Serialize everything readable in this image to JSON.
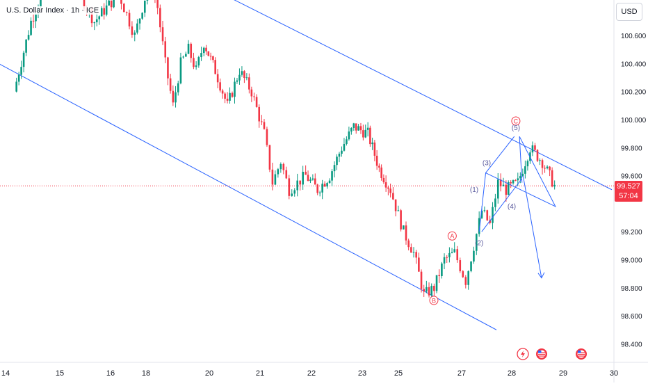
{
  "header": {
    "title": "U.S. Dollar Index · 1h · ICE"
  },
  "toolbar": {
    "currency_label": "USD"
  },
  "last_price": {
    "value": "99.527",
    "countdown": "57:04",
    "level": 99.527
  },
  "chart_data": {
    "type": "candlestick",
    "ylim": [
      98.3,
      101.1
    ],
    "y_ticks": [
      {
        "v": 100.6,
        "label": "100.600"
      },
      {
        "v": 100.4,
        "label": "100.400"
      },
      {
        "v": 100.2,
        "label": "100.200"
      },
      {
        "v": 100.0,
        "label": "100.000"
      },
      {
        "v": 99.8,
        "label": "99.800"
      },
      {
        "v": 99.6,
        "label": "99.600"
      },
      {
        "v": 99.2,
        "label": "99.200"
      },
      {
        "v": 99.0,
        "label": "99.000"
      },
      {
        "v": 98.8,
        "label": "98.800"
      },
      {
        "v": 98.6,
        "label": "98.600"
      },
      {
        "v": 98.4,
        "label": "98.400"
      }
    ],
    "x_ticks": [
      "14",
      "15",
      "16",
      "18",
      "20",
      "21",
      "22",
      "23",
      "25",
      "27",
      "28",
      "29",
      "30"
    ],
    "colors": {
      "up": "#089981",
      "down": "#f23645",
      "channel": "#2962ff",
      "wave": "#2962ff",
      "label_red": "#f23645",
      "label_purple": "#5b5b9e"
    },
    "path": [
      [
        "14",
        100.2
      ],
      [
        "14",
        100.7
      ],
      [
        "14",
        101.0
      ],
      [
        "15",
        101.0
      ],
      [
        "15",
        100.7
      ],
      [
        "16",
        100.9
      ],
      [
        "16",
        100.6
      ],
      [
        "18",
        101.0
      ],
      [
        "18",
        100.8
      ],
      [
        "18",
        100.4
      ],
      [
        "18",
        100.1
      ],
      [
        "18",
        100.4
      ],
      [
        "18",
        100.5
      ],
      [
        "18",
        100.35
      ],
      [
        "18",
        100.55
      ],
      [
        "20",
        100.35
      ],
      [
        "20",
        100.1
      ],
      [
        "20",
        100.35
      ],
      [
        "20",
        100.2
      ],
      [
        "21",
        99.9
      ],
      [
        "21",
        99.55
      ],
      [
        "21",
        99.7
      ],
      [
        "21",
        99.5
      ],
      [
        "21",
        99.55
      ],
      [
        "21",
        99.6
      ],
      [
        "22",
        99.5
      ],
      [
        "22",
        99.6
      ],
      [
        "22",
        99.8
      ],
      [
        "22",
        99.95
      ],
      [
        "23",
        99.9
      ],
      [
        "23",
        99.65
      ],
      [
        "23",
        99.5
      ],
      [
        "25",
        99.2
      ],
      [
        "25",
        99.05
      ],
      [
        "25",
        98.75
      ],
      [
        "25",
        98.8
      ],
      [
        "25",
        99.0
      ],
      [
        "25",
        99.05
      ],
      [
        "27",
        98.85
      ],
      [
        "27",
        99.1
      ],
      [
        "27",
        99.35
      ],
      [
        "27",
        99.25
      ],
      [
        "27",
        99.55
      ],
      [
        "27",
        99.5
      ],
      [
        "28",
        99.55
      ],
      [
        "28",
        99.8
      ],
      [
        "28",
        99.7
      ],
      [
        "28",
        99.527
      ]
    ],
    "channel": {
      "upper": [
        [
          "14",
          101.7
        ],
        [
          "29",
          99.5
        ]
      ],
      "lower": [
        [
          "14",
          100.4
        ],
        [
          "27",
          98.5
        ]
      ]
    },
    "wave_labels": [
      {
        "label": "A",
        "x": "25",
        "y": 99.17,
        "circled": true
      },
      {
        "label": "B",
        "x": "25",
        "y": 98.71,
        "circled": true
      },
      {
        "label": "C",
        "x": "28",
        "y": 99.99,
        "circled": true
      },
      {
        "label": "(1)",
        "x": "27",
        "y": 99.5
      },
      {
        "label": "(2)",
        "x": "27",
        "y": 99.12
      },
      {
        "label": "(3)",
        "x": "27",
        "y": 99.69
      },
      {
        "label": "(4)",
        "x": "28",
        "y": 99.38
      },
      {
        "label": "(5)",
        "x": "28",
        "y": 99.94
      }
    ],
    "wave_path": [
      [
        "27",
        99.2
      ],
      [
        "27",
        99.62
      ],
      [
        "28",
        99.38
      ],
      [
        "28",
        99.88
      ],
      [
        "28",
        99.55
      ]
    ],
    "projection": [
      [
        "28",
        99.6
      ],
      [
        "28",
        98.87
      ]
    ],
    "event_icons": [
      {
        "x": "28",
        "icon": "lightning-icon"
      },
      {
        "x": "28",
        "icon": "us-flag-icon"
      },
      {
        "x": "29",
        "icon": "us-flag-icon"
      }
    ]
  }
}
